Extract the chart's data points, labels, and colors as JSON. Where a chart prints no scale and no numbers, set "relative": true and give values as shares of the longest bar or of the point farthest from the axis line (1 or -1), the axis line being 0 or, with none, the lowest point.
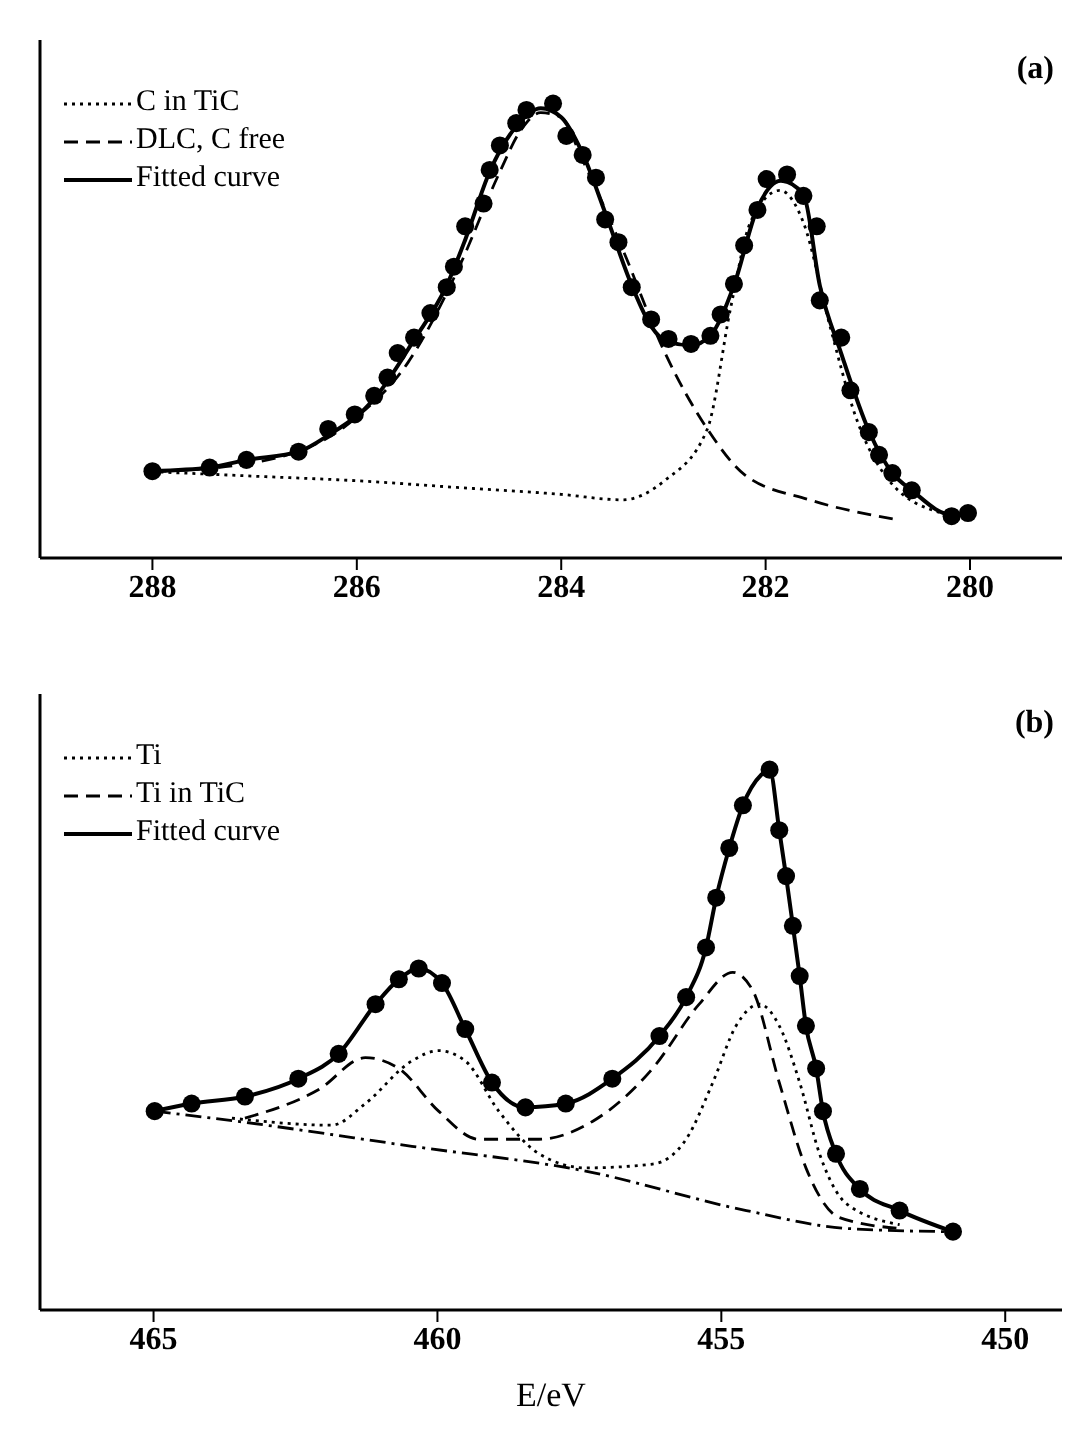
{
  "chart_data": [
    {
      "type": "line",
      "relative": true,
      "annotations": [
        "(a)"
      ],
      "xlim": [
        289.1,
        279.1
      ],
      "xticks": [
        288,
        286,
        284,
        282,
        280
      ],
      "tick_labels": "x",
      "legend": "top left",
      "series": [
        {
          "type": "scatter",
          "color": "#000000",
          "marker": "circle",
          "x": [
            288.0,
            287.44,
            287.08,
            286.57,
            286.28,
            286.02,
            285.83,
            285.7,
            285.6,
            285.44,
            285.28,
            285.12,
            285.05,
            284.94,
            284.76,
            284.7,
            284.6,
            284.44,
            284.34,
            284.08,
            283.95,
            283.79,
            283.66,
            283.57,
            283.44,
            283.31,
            283.12,
            282.95,
            282.73,
            282.54,
            282.44,
            282.31,
            282.21,
            282.08,
            281.99,
            281.79,
            281.63,
            281.5,
            281.47,
            281.26,
            281.17,
            280.99,
            280.89,
            280.76,
            280.57,
            280.18,
            280.02
          ],
          "values": [
            0.191,
            0.199,
            0.216,
            0.234,
            0.284,
            0.316,
            0.357,
            0.397,
            0.451,
            0.485,
            0.539,
            0.596,
            0.641,
            0.73,
            0.78,
            0.854,
            0.908,
            0.957,
            0.986,
            1.0,
            0.929,
            0.887,
            0.837,
            0.745,
            0.695,
            0.596,
            0.525,
            0.482,
            0.471,
            0.489,
            0.536,
            0.603,
            0.688,
            0.766,
            0.834,
            0.844,
            0.797,
            0.73,
            0.567,
            0.485,
            0.369,
            0.277,
            0.227,
            0.187,
            0.149,
            0.092,
            0.099
          ]
        },
        {
          "name": "C in TiC",
          "type": "line",
          "line_style": "dotted",
          "color": "#000000",
          "x": [
            288.0,
            287.0,
            286.0,
            285.0,
            284.0,
            283.4,
            282.99,
            282.57,
            282.34,
            282.15,
            281.86,
            281.63,
            281.37,
            281.12,
            280.79,
            280.28
          ],
          "values": [
            0.19,
            0.18,
            0.17,
            0.155,
            0.14,
            0.128,
            0.17,
            0.284,
            0.553,
            0.738,
            0.809,
            0.738,
            0.51,
            0.312,
            0.17,
            0.099
          ]
        },
        {
          "name": "DLC, C free",
          "type": "line",
          "line_style": "dashed",
          "color": "#000000",
          "x": [
            288.0,
            287.0,
            286.0,
            285.5,
            285.0,
            284.6,
            284.4,
            284.2,
            284.0,
            283.8,
            283.4,
            282.99,
            282.57,
            282.21,
            281.57,
            280.73
          ],
          "values": [
            0.19,
            0.21,
            0.31,
            0.43,
            0.64,
            0.85,
            0.94,
            0.98,
            0.97,
            0.88,
            0.68,
            0.454,
            0.284,
            0.184,
            0.128,
            0.085
          ]
        },
        {
          "name": "Fitted curve",
          "type": "line",
          "line_style": "solid",
          "color": "#000000",
          "x": [
            288.0,
            287.44,
            287.08,
            286.57,
            286.28,
            285.83,
            285.44,
            285.12,
            284.94,
            284.7,
            284.44,
            284.2,
            284.0,
            283.79,
            283.57,
            283.31,
            283.12,
            282.95,
            282.73,
            282.54,
            282.31,
            282.08,
            281.85,
            281.63,
            281.47,
            281.26,
            280.99,
            280.76,
            280.57,
            280.18,
            280.02
          ],
          "values": [
            0.191,
            0.199,
            0.216,
            0.234,
            0.27,
            0.35,
            0.48,
            0.6,
            0.7,
            0.85,
            0.95,
            0.99,
            0.97,
            0.89,
            0.76,
            0.6,
            0.51,
            0.475,
            0.468,
            0.49,
            0.6,
            0.77,
            0.83,
            0.8,
            0.6,
            0.45,
            0.28,
            0.187,
            0.149,
            0.095,
            0.095
          ]
        }
      ]
    },
    {
      "type": "line",
      "relative": true,
      "annotations": [
        "(b)"
      ],
      "xlabel": "E/eV",
      "xlim": [
        467,
        449
      ],
      "xticks": [
        465,
        460,
        455,
        450
      ],
      "tick_labels": "x",
      "legend": "top left",
      "series": [
        {
          "type": "scatter",
          "color": "#000000",
          "marker": "circle",
          "x": [
            464.98,
            464.33,
            463.39,
            462.45,
            461.74,
            461.09,
            460.68,
            460.33,
            459.92,
            459.51,
            459.04,
            458.45,
            457.74,
            456.92,
            456.09,
            455.62,
            455.27,
            455.09,
            454.86,
            454.62,
            454.15,
            453.98,
            453.86,
            453.74,
            453.62,
            453.51,
            453.33,
            453.21,
            452.98,
            452.56,
            451.86,
            450.92
          ],
          "values": [
            0.368,
            0.382,
            0.395,
            0.428,
            0.474,
            0.566,
            0.612,
            0.632,
            0.605,
            0.52,
            0.421,
            0.375,
            0.382,
            0.428,
            0.507,
            0.579,
            0.671,
            0.763,
            0.855,
            0.934,
            1.0,
            0.888,
            0.803,
            0.711,
            0.618,
            0.526,
            0.447,
            0.368,
            0.289,
            0.224,
            0.184,
            0.145
          ]
        },
        {
          "name": "Ti",
          "type": "line",
          "line_style": "dotted",
          "color": "#000000",
          "x": [
            463.62,
            461.86,
            461.27,
            460.45,
            459.98,
            459.51,
            458.92,
            458.21,
            457.39,
            456.21,
            455.62,
            455.15,
            454.74,
            454.33,
            453.98,
            453.62,
            453.27,
            452.8,
            451.86
          ],
          "values": [
            0.355,
            0.342,
            0.382,
            0.461,
            0.48,
            0.461,
            0.368,
            0.289,
            0.263,
            0.27,
            0.316,
            0.421,
            0.526,
            0.566,
            0.526,
            0.421,
            0.289,
            0.197,
            0.158
          ]
        },
        {
          "name": "Ti in TiC",
          "type": "line",
          "line_style": "dashed",
          "color": "#000000",
          "x": [
            463.39,
            462.09,
            461.27,
            460.68,
            459.98,
            459.27,
            458.21,
            457.27,
            456.21,
            455.39,
            454.8,
            454.45,
            453.98,
            453.51,
            452.92,
            451.86
          ],
          "values": [
            0.355,
            0.408,
            0.467,
            0.447,
            0.368,
            0.316,
            0.316,
            0.349,
            0.447,
            0.566,
            0.625,
            0.592,
            0.421,
            0.263,
            0.171,
            0.151
          ]
        },
        {
          "name": "Fitted curve",
          "type": "line",
          "line_style": "solid",
          "color": "#000000",
          "x": [
            464.98,
            464.33,
            463.39,
            462.45,
            461.74,
            461.09,
            460.68,
            460.33,
            459.92,
            459.51,
            459.04,
            458.45,
            457.74,
            456.92,
            456.09,
            455.62,
            455.27,
            455.09,
            454.86,
            454.62,
            454.3,
            454.15,
            453.98,
            453.86,
            453.74,
            453.62,
            453.51,
            453.33,
            453.21,
            452.98,
            452.56,
            451.86,
            450.92
          ],
          "values": [
            0.368,
            0.382,
            0.395,
            0.428,
            0.474,
            0.566,
            0.612,
            0.632,
            0.605,
            0.52,
            0.421,
            0.375,
            0.382,
            0.428,
            0.507,
            0.579,
            0.671,
            0.763,
            0.855,
            0.934,
            0.99,
            1.0,
            0.888,
            0.803,
            0.711,
            0.618,
            0.526,
            0.447,
            0.368,
            0.289,
            0.224,
            0.184,
            0.145
          ]
        },
        {
          "type": "line",
          "line_style": "dashdot",
          "color": "#000000",
          "x": [
            464.98,
            463.51,
            460.45,
            457.39,
            454.56,
            452.8,
            451.04
          ],
          "values": [
            0.368,
            0.349,
            0.303,
            0.257,
            0.184,
            0.151,
            0.145
          ]
        }
      ]
    }
  ]
}
